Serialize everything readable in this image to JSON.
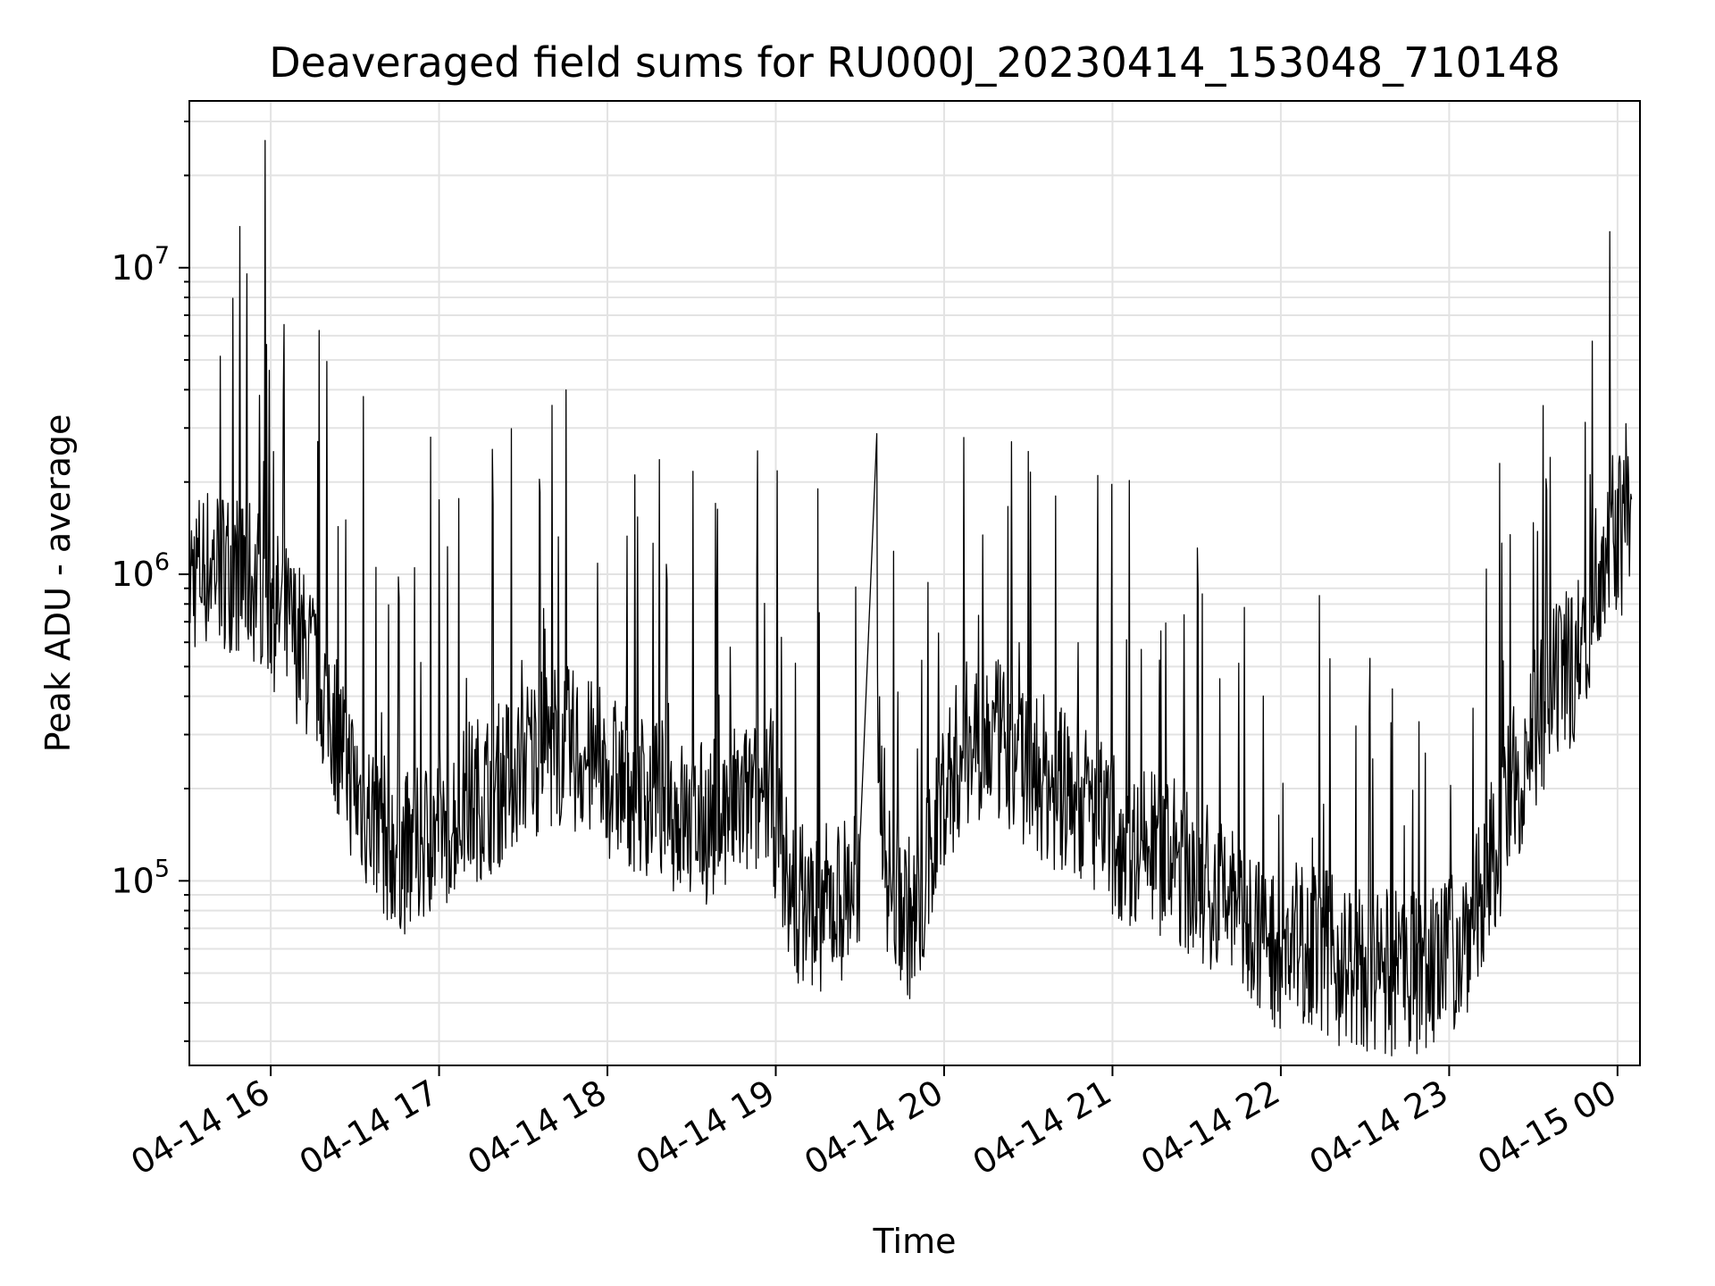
{
  "chart_data": {
    "type": "line",
    "title": "Deaveraged field sums for RU000J_20230414_153048_710148",
    "xlabel": "Time",
    "ylabel": "Peak ADU - average",
    "yscale": "log",
    "grid": true,
    "xlim": [
      "04-14 15:31",
      "04-15 00:08"
    ],
    "ylim": [
      25000,
      35000000
    ],
    "x_ticks": [
      "04-14 16",
      "04-14 17",
      "04-14 18",
      "04-14 19",
      "04-14 20",
      "04-14 21",
      "04-14 22",
      "04-14 23",
      "04-15 00"
    ],
    "y_ticks": [
      {
        "base": "10",
        "exp": "5",
        "value": 100000
      },
      {
        "base": "10",
        "exp": "6",
        "value": 1000000
      },
      {
        "base": "10",
        "exp": "7",
        "value": 10000000
      }
    ],
    "line_color": "#000000",
    "series": [
      {
        "x": [
          "04-14 15:31",
          "04-14 15:40",
          "04-14 15:50",
          "04-14 15:58",
          "04-14 16:02",
          "04-14 16:10",
          "04-14 16:20",
          "04-14 16:30",
          "04-14 16:40",
          "04-14 16:50",
          "04-14 17:00",
          "04-14 17:10",
          "04-14 17:20",
          "04-14 17:30",
          "04-14 17:40",
          "04-14 17:50",
          "04-14 18:00",
          "04-14 18:10",
          "04-14 18:20",
          "04-14 18:30",
          "04-14 18:40",
          "04-14 18:50",
          "04-14 18:58",
          "04-14 19:05",
          "04-14 19:15",
          "04-14 19:25",
          "04-14 19:30",
          "04-14 19:36",
          "04-14 19:40",
          "04-14 19:50",
          "04-14 20:00",
          "04-14 20:10",
          "04-14 20:20",
          "04-14 20:30",
          "04-14 20:40",
          "04-14 20:50",
          "04-14 21:00",
          "04-14 21:10",
          "04-14 21:20",
          "04-14 21:30",
          "04-14 21:40",
          "04-14 21:50",
          "04-14 22:00",
          "04-14 22:10",
          "04-14 22:20",
          "04-14 22:30",
          "04-14 22:40",
          "04-14 22:50",
          "04-14 23:00",
          "04-14 23:10",
          "04-14 23:20",
          "04-14 23:30",
          "04-14 23:40",
          "04-14 23:48",
          "04-14 23:55",
          "04-15 00:05"
        ],
        "y": [
          1000000,
          1100000,
          1000000,
          900000,
          750000,
          600000,
          400000,
          200000,
          140000,
          120000,
          150000,
          180000,
          200000,
          250000,
          280000,
          260000,
          220000,
          200000,
          180000,
          150000,
          160000,
          180000,
          200000,
          90000,
          80000,
          90000,
          110000,
          350000,
          100000,
          70000,
          200000,
          300000,
          280000,
          240000,
          200000,
          180000,
          140000,
          130000,
          120000,
          100000,
          90000,
          70000,
          60000,
          65000,
          55000,
          50000,
          50000,
          50000,
          55000,
          80000,
          160000,
          320000,
          450000,
          600000,
          1300000,
          1400000
        ]
      }
    ],
    "spikes": [
      {
        "x": "04-14 15:58",
        "y": 26000000
      },
      {
        "x": "04-14 16:33",
        "y": 3800000
      },
      {
        "x": "04-14 16:57",
        "y": 2800000
      },
      {
        "x": "04-14 17:36",
        "y": 1850000
      },
      {
        "x": "04-14 19:15",
        "y": 1900000
      },
      {
        "x": "04-14 23:18",
        "y": 2300000
      },
      {
        "x": "04-15 00:03",
        "y": 3100000
      }
    ]
  }
}
